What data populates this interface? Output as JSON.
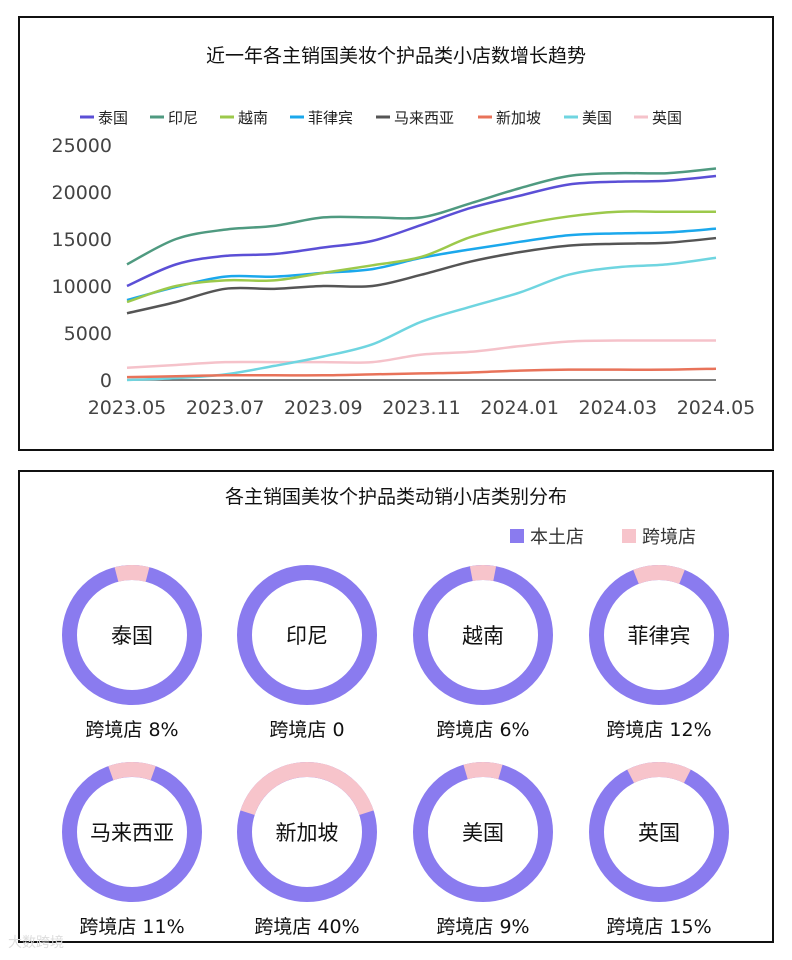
{
  "chart_data": [
    {
      "type": "line",
      "title": "近一年各主销国美妆个护品类小店数增长趋势",
      "x": [
        "2023.05",
        "2023.06",
        "2023.07",
        "2023.08",
        "2023.09",
        "2023.10",
        "2023.11",
        "2023.12",
        "2024.01",
        "2024.02",
        "2024.03",
        "2024.04",
        "2024.05"
      ],
      "xticks": [
        "2023.05",
        "2023.07",
        "2023.09",
        "2023.11",
        "2024.01",
        "2024.03",
        "2024.05"
      ],
      "yticks": [
        "0",
        "5000",
        "10000",
        "15000",
        "20000",
        "25000"
      ],
      "ylim": [
        0,
        25000
      ],
      "grid": false,
      "legend": "top",
      "series": [
        {
          "name": "泰国",
          "color": "#5b4fd6",
          "values": [
            10000,
            12300,
            13200,
            13400,
            14100,
            14800,
            16500,
            18300,
            19600,
            20800,
            21100,
            21200,
            21700
          ]
        },
        {
          "name": "印尼",
          "color": "#4f9a80",
          "values": [
            12300,
            15000,
            16000,
            16400,
            17300,
            17300,
            17300,
            18800,
            20400,
            21700,
            22000,
            22000,
            22500
          ]
        },
        {
          "name": "越南",
          "color": "#9cc94b",
          "values": [
            8300,
            10000,
            10600,
            10600,
            11400,
            12200,
            13100,
            15200,
            16500,
            17400,
            17900,
            17900,
            17900
          ]
        },
        {
          "name": "菲律宾",
          "color": "#1ba8ec",
          "values": [
            8500,
            9900,
            11000,
            11000,
            11400,
            11800,
            13000,
            13900,
            14700,
            15400,
            15600,
            15700,
            16100
          ]
        },
        {
          "name": "马来西亚",
          "color": "#555555",
          "values": [
            7100,
            8300,
            9700,
            9700,
            10000,
            10000,
            11200,
            12600,
            13600,
            14300,
            14500,
            14600,
            15100
          ]
        },
        {
          "name": "新加坡",
          "color": "#e8735a",
          "values": [
            300,
            400,
            500,
            500,
            500,
            600,
            700,
            800,
            1000,
            1100,
            1100,
            1100,
            1200
          ]
        },
        {
          "name": "美国",
          "color": "#6fd5e0",
          "values": [
            0,
            200,
            600,
            1500,
            2500,
            3800,
            6200,
            7800,
            9300,
            11200,
            12000,
            12300,
            13000
          ]
        },
        {
          "name": "英国",
          "color": "#f5c2ca",
          "values": [
            1300,
            1600,
            1900,
            1900,
            1900,
            1900,
            2700,
            3000,
            3600,
            4100,
            4200,
            4200,
            4200
          ]
        }
      ]
    },
    {
      "type": "pie",
      "title": "各主销国美妆个护品类动销小店类别分布",
      "legend": "top-right",
      "legend_entries": [
        {
          "name": "本土店",
          "color": "#8a7bef"
        },
        {
          "name": "跨境店",
          "color": "#f7c4cb"
        }
      ],
      "items": [
        {
          "country": "泰国",
          "cross": 8,
          "label": "跨境店 8%"
        },
        {
          "country": "印尼",
          "cross": 0,
          "label": "跨境店 0"
        },
        {
          "country": "越南",
          "cross": 6,
          "label": "跨境店 6%"
        },
        {
          "country": "菲律宾",
          "cross": 12,
          "label": "跨境店 12%"
        },
        {
          "country": "马来西亚",
          "cross": 11,
          "label": "跨境店 11%"
        },
        {
          "country": "新加坡",
          "cross": 40,
          "label": "跨境店 40%"
        },
        {
          "country": "美国",
          "cross": 9,
          "label": "跨境店 9%"
        },
        {
          "country": "英国",
          "cross": 15,
          "label": "跨境店 15%"
        }
      ]
    }
  ],
  "watermark": "大数跨境"
}
